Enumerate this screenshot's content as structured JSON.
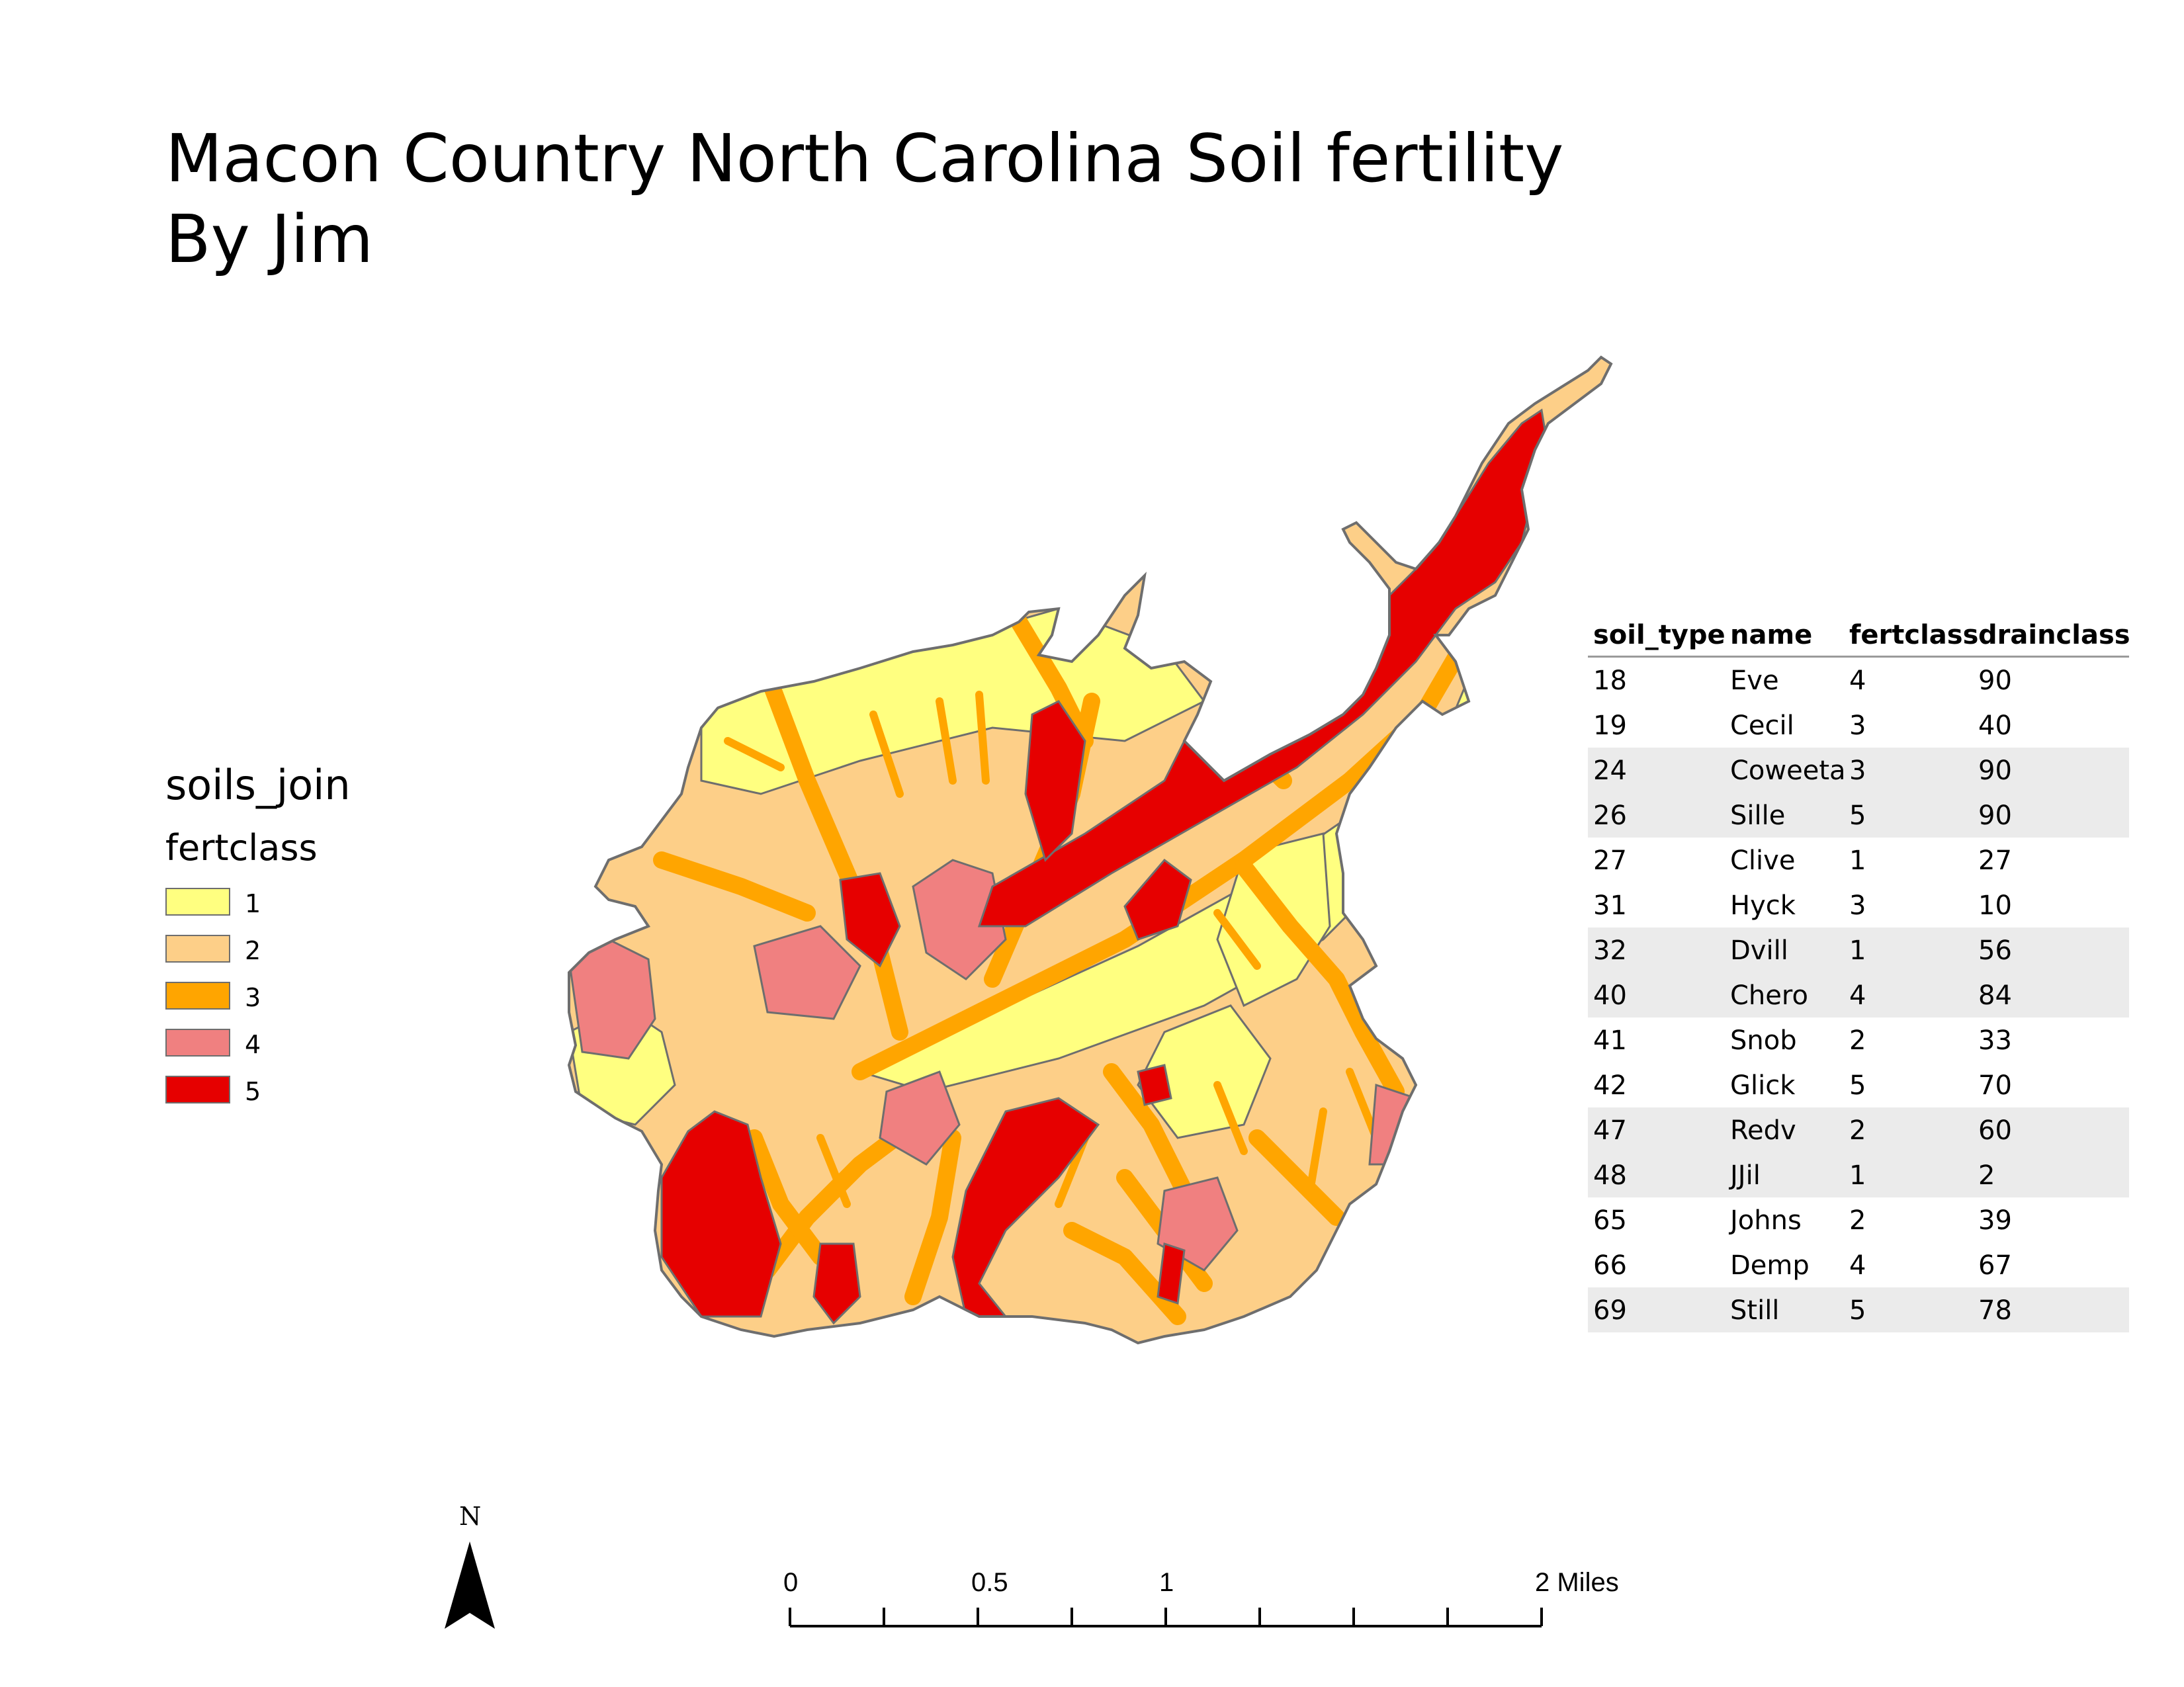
{
  "title": {
    "line1": "Macon Country North Carolina Soil fertility",
    "line2": "By Jim"
  },
  "legend": {
    "layer_name": "soils_join",
    "field_name": "fertclass",
    "items": [
      {
        "label": "1",
        "color": "#ffff80"
      },
      {
        "label": "2",
        "color": "#fdcf88"
      },
      {
        "label": "3",
        "color": "#ffa500"
      },
      {
        "label": "4",
        "color": "#f08080"
      },
      {
        "label": "5",
        "color": "#e60000"
      }
    ]
  },
  "map": {
    "region": "Macon County, North Carolina",
    "theme": "soil fertility class",
    "outline_color": "#6e6e6e"
  },
  "table": {
    "columns": [
      "soil_type",
      "name",
      "fertclass",
      "drainclass"
    ],
    "rows": [
      [
        "18",
        "Eve",
        "4",
        "90"
      ],
      [
        "19",
        "Cecil",
        "3",
        "40"
      ],
      [
        "24",
        "Coweeta",
        "3",
        "90"
      ],
      [
        "26",
        "Sille",
        "5",
        "90"
      ],
      [
        "27",
        "Clive",
        "1",
        "27"
      ],
      [
        "31",
        "Hyck",
        "3",
        "10"
      ],
      [
        "32",
        "Dvill",
        "1",
        "56"
      ],
      [
        "40",
        "Chero",
        "4",
        "84"
      ],
      [
        "41",
        "Snob",
        "2",
        "33"
      ],
      [
        "42",
        "Glick",
        "5",
        "70"
      ],
      [
        "47",
        "Redv",
        "2",
        "60"
      ],
      [
        "48",
        "JJil",
        "1",
        "2"
      ],
      [
        "65",
        "Johns",
        "2",
        "39"
      ],
      [
        "66",
        "Demp",
        "4",
        "67"
      ],
      [
        "69",
        "Still",
        "5",
        "78"
      ]
    ]
  },
  "north_arrow": {
    "label": "N"
  },
  "scale_bar": {
    "ticks": [
      {
        "label": "0",
        "value": 0
      },
      {
        "label": "0.5",
        "value": 0.5
      },
      {
        "label": "1",
        "value": 1
      },
      {
        "label": "2 Miles",
        "value": 2
      }
    ],
    "max": 2,
    "unit": "Miles"
  }
}
